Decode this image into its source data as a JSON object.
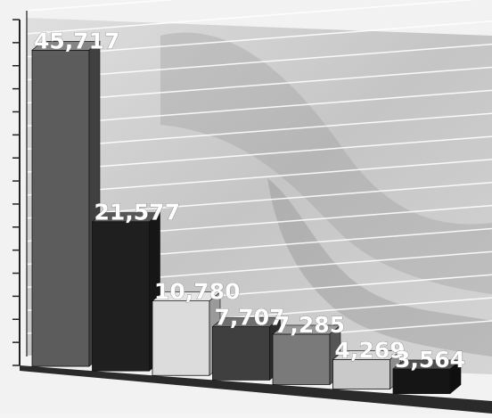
{
  "chart_data": {
    "type": "bar",
    "title": "",
    "xlabel": "",
    "ylabel": "",
    "grid": true,
    "ylim": [
      0,
      50000
    ],
    "categories": [
      "",
      "",
      "",
      "",
      "",
      "",
      ""
    ],
    "values": [
      45717,
      21577,
      10780,
      7707,
      7285,
      4269,
      3564
    ],
    "labels": [
      "45,717",
      "21,577",
      "10,780",
      "7,707",
      "7,285",
      "4,269",
      "3,564"
    ],
    "bar_colors": [
      "#5c5c5c",
      "#1f1f1f",
      "#dcdcdc",
      "#3f3f3f",
      "#7a7a7a",
      "#c9c9c9",
      "#151515"
    ]
  }
}
